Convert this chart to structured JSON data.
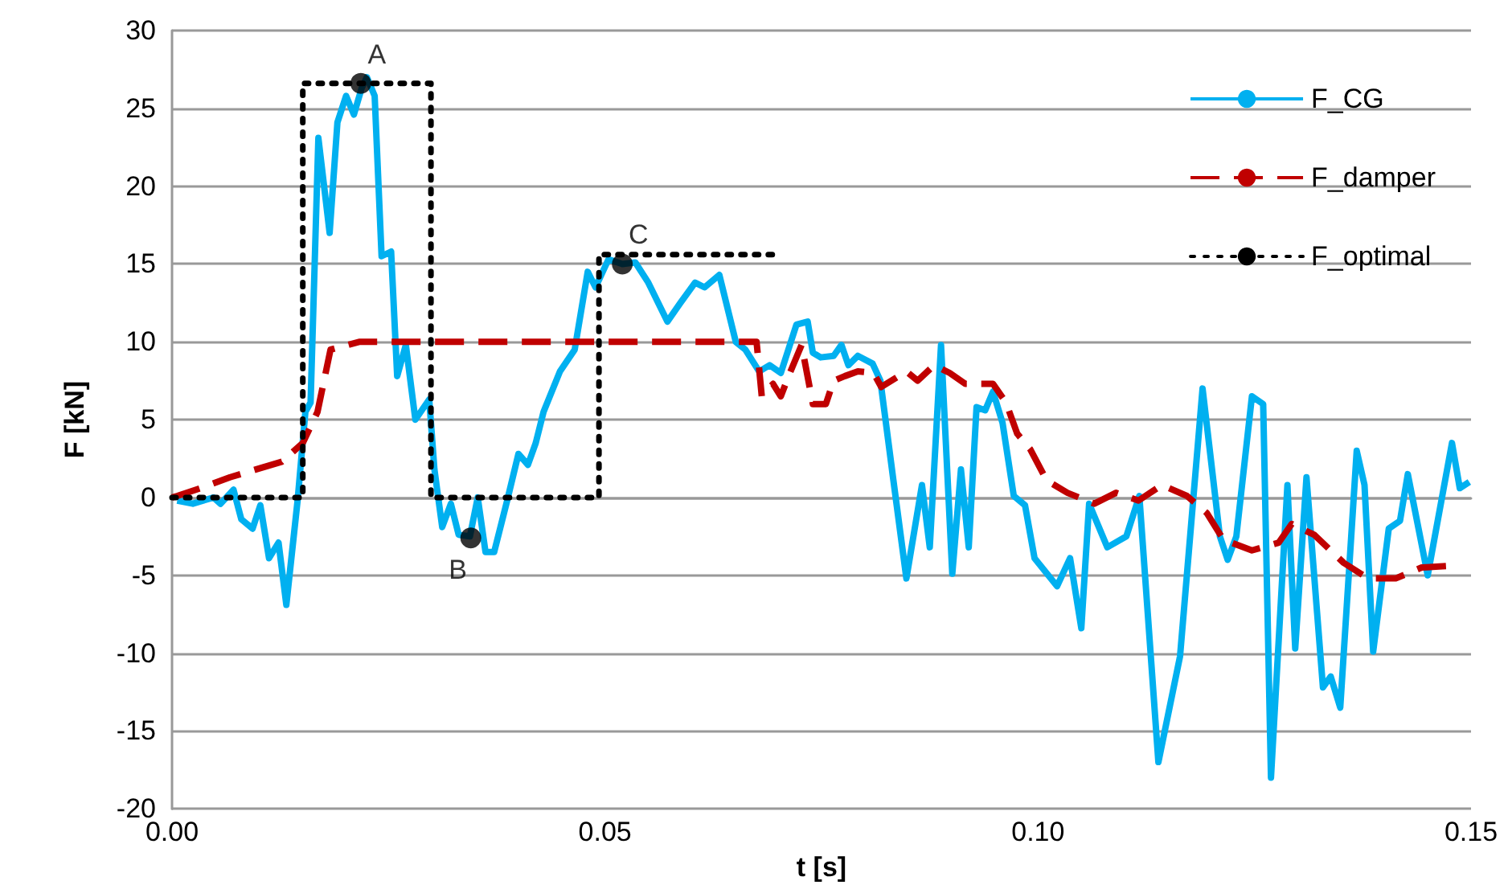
{
  "chart_data": {
    "type": "line",
    "xlabel": "t [s]",
    "ylabel": "F [kN]",
    "xlim": [
      0,
      0.15
    ],
    "xticks": [
      {
        "value": 0,
        "label": "0.00"
      },
      {
        "value": 0.05,
        "label": "0.05"
      },
      {
        "value": 0.1,
        "label": "0.10"
      },
      {
        "value": 0.15,
        "label": "0.15"
      }
    ],
    "ylim": [
      -20,
      30
    ],
    "yticks": [
      -20,
      -15,
      -10,
      -5,
      0,
      5,
      10,
      15,
      20,
      25,
      30
    ],
    "grid": "y",
    "legend": "top right",
    "marker": "none",
    "series": [
      {
        "name": "F_CG",
        "color": "#00b0f0",
        "line_style": "solid",
        "x": [
          0.0006,
          0.0024,
          0.0048,
          0.0056,
          0.0071,
          0.008,
          0.0093,
          0.0102,
          0.0112,
          0.0123,
          0.0132,
          0.0145,
          0.0154,
          0.016,
          0.0169,
          0.0182,
          0.0191,
          0.0201,
          0.021,
          0.0219,
          0.0225,
          0.0234,
          0.0242,
          0.0253,
          0.026,
          0.027,
          0.0281,
          0.0297,
          0.0303,
          0.0312,
          0.0322,
          0.0331,
          0.0344,
          0.0353,
          0.0362,
          0.0372,
          0.0387,
          0.04,
          0.0411,
          0.042,
          0.0429,
          0.0448,
          0.0465,
          0.048,
          0.0489,
          0.0504,
          0.052,
          0.0535,
          0.055,
          0.0572,
          0.0587,
          0.0604,
          0.0615,
          0.0632,
          0.0651,
          0.0662,
          0.0678,
          0.069,
          0.0703,
          0.0721,
          0.0734,
          0.074,
          0.0749,
          0.0764,
          0.0773,
          0.0781,
          0.0792,
          0.0809,
          0.0818,
          0.0833,
          0.0848,
          0.0866,
          0.0875,
          0.0888,
          0.0901,
          0.0911,
          0.092,
          0.0929,
          0.0939,
          0.0948,
          0.0959,
          0.0972,
          0.0985,
          0.0996,
          0.1022,
          0.1037,
          0.105,
          0.1059,
          0.108,
          0.1102,
          0.1117,
          0.1139,
          0.1164,
          0.119,
          0.121,
          0.1219,
          0.1229,
          0.1247,
          0.126,
          0.1269,
          0.1288,
          0.1297,
          0.131,
          0.1329,
          0.1338,
          0.1349,
          0.1368,
          0.1377,
          0.1387,
          0.1405,
          0.1418,
          0.1427,
          0.145,
          0.1478,
          0.1487,
          0.1498
        ],
        "values": [
          -0.2,
          -0.4,
          0,
          -0.4,
          0.5,
          -1.4,
          -2,
          -0.5,
          -3.9,
          -2.9,
          -6.9,
          -0.2,
          5.5,
          6.1,
          23.1,
          17,
          24.1,
          25.8,
          24.6,
          26.3,
          27,
          25.8,
          15.5,
          15.8,
          7.8,
          9.8,
          5,
          6.3,
          1.8,
          -1.9,
          -0.4,
          -2.4,
          -2.5,
          0,
          -3.5,
          -3.5,
          -0.2,
          2.8,
          2.1,
          3.5,
          5.5,
          8.1,
          9.5,
          14.5,
          13.5,
          15.3,
          15,
          15.1,
          13.8,
          11.3,
          12.5,
          13.8,
          13.5,
          14.3,
          10,
          9.5,
          8.1,
          8.5,
          8,
          11.1,
          11.3,
          9.3,
          9,
          9.1,
          9.8,
          8.5,
          9.1,
          8.6,
          7.5,
          1.1,
          -5.2,
          0.8,
          -3.2,
          9.8,
          -4.9,
          1.8,
          -3.2,
          5.8,
          5.6,
          6.8,
          4.8,
          0.1,
          -0.5,
          -3.9,
          -5.7,
          -3.9,
          -8.4,
          -0.4,
          -3.2,
          -2.5,
          0.1,
          -17,
          -10.2,
          7,
          -2.5,
          -4,
          -2.5,
          6.5,
          6,
          -18,
          0.8,
          -9.7,
          1.3,
          -12.2,
          -11.5,
          -13.5,
          3,
          0.8,
          -9.9,
          -2,
          -1.5,
          1.5,
          -5,
          3.5,
          0.6,
          1
        ]
      },
      {
        "name": "F_damper",
        "color": "#c00000",
        "line_style": "dashed",
        "x": [
          0,
          0.0006,
          0.0033,
          0.0067,
          0.0127,
          0.0151,
          0.0168,
          0.0183,
          0.0216,
          0.0675,
          0.0681,
          0.0694,
          0.0703,
          0.0712,
          0.0727,
          0.074,
          0.0755,
          0.0764,
          0.0777,
          0.0792,
          0.081,
          0.0819,
          0.0848,
          0.0861,
          0.088,
          0.0898,
          0.0916,
          0.0948,
          0.0963,
          0.0976,
          0.0991,
          0.101,
          0.1034,
          0.1065,
          0.109,
          0.1116,
          0.1143,
          0.1172,
          0.1195,
          0.1214,
          0.1247,
          0.1278,
          0.1293,
          0.1319,
          0.1353,
          0.1381,
          0.1413,
          0.1443,
          0.1474
        ],
        "values": [
          0,
          0.1,
          0.6,
          1.3,
          2.3,
          3.5,
          5.5,
          9.5,
          10,
          10,
          6.5,
          7.3,
          6.5,
          7.8,
          9.8,
          6,
          6,
          7.5,
          7.8,
          8.1,
          8,
          7.1,
          8.1,
          7.5,
          8.5,
          8,
          7.3,
          7.3,
          6.1,
          4.1,
          3.1,
          1.1,
          0.3,
          -0.4,
          0.3,
          -0.2,
          0.8,
          0.1,
          -1,
          -2.7,
          -3.4,
          -2.9,
          -1.7,
          -2.4,
          -4.2,
          -5.2,
          -5.2,
          -4.5,
          -4.4
        ]
      },
      {
        "name": "F_optimal",
        "color": "#000000",
        "line_style": "dotted",
        "x": [
          0,
          0.0151,
          0.0151,
          0.0299,
          0.0299,
          0.0493,
          0.0493,
          0.0701
        ],
        "values": [
          0,
          0,
          26.6,
          26.6,
          0,
          0,
          15.6,
          15.6
        ]
      }
    ],
    "annotations": [
      {
        "text": "A",
        "x": 0.0218,
        "y": 26.6
      },
      {
        "text": "B",
        "x": 0.0345,
        "y": -2.6
      },
      {
        "text": "C",
        "x": 0.052,
        "y": 15
      }
    ]
  }
}
